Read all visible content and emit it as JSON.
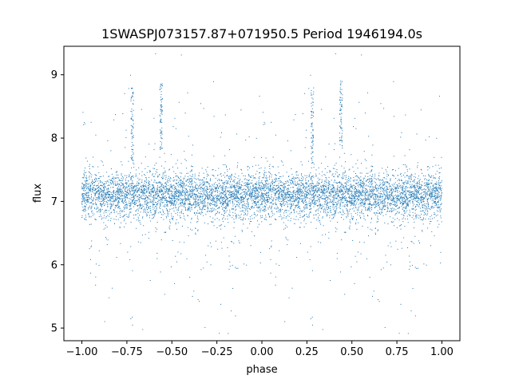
{
  "chart_data": {
    "type": "scatter",
    "title": "1SWASPJ073157.87+071950.5 Period 1946194.0s",
    "xlabel": "phase",
    "ylabel": "flux",
    "xlim": [
      -1.1,
      1.1
    ],
    "ylim": [
      4.8,
      9.45
    ],
    "xticks": [
      -1.0,
      -0.75,
      -0.5,
      -0.25,
      0.0,
      0.25,
      0.5,
      0.75,
      1.0
    ],
    "xtick_labels": [
      "−1.00",
      "−0.75",
      "−0.50",
      "−0.25",
      "0.00",
      "0.25",
      "0.50",
      "0.75",
      "1.00"
    ],
    "yticks": [
      5,
      6,
      7,
      8,
      9
    ],
    "ytick_labels": [
      "5",
      "6",
      "7",
      "8",
      "9"
    ],
    "grid": false,
    "point_color": "#1f77b4",
    "series": [
      {
        "description": "phase-folded light curve (data repeated for phase -1..0 and 0..1)",
        "baseline_flux": 7.1,
        "scatter_sigma": 0.18,
        "bright_excursions": [
          {
            "phase": -0.56,
            "flux_range": [
              7.8,
              8.9
            ]
          },
          {
            "phase": 0.44,
            "flux_range": [
              7.8,
              8.9
            ]
          },
          {
            "phase": -0.72,
            "flux_range": [
              7.6,
              8.8
            ]
          },
          {
            "phase": 0.28,
            "flux_range": [
              7.6,
              8.8
            ]
          }
        ],
        "points": [
          {
            "x": -0.99,
            "y": 7.05
          },
          {
            "x": -0.95,
            "y": 7.2
          },
          {
            "x": -0.9,
            "y": 7.0
          },
          {
            "x": -0.85,
            "y": 7.15
          },
          {
            "x": -0.8,
            "y": 6.9
          },
          {
            "x": -0.75,
            "y": 7.1
          },
          {
            "x": -0.7,
            "y": 7.2
          },
          {
            "x": -0.65,
            "y": 7.0
          },
          {
            "x": -0.6,
            "y": 7.1
          },
          {
            "x": -0.56,
            "y": 8.3
          },
          {
            "x": -0.5,
            "y": 7.05
          },
          {
            "x": -0.45,
            "y": 7.1
          },
          {
            "x": -0.4,
            "y": 7.0
          },
          {
            "x": -0.35,
            "y": 7.2
          },
          {
            "x": -0.3,
            "y": 7.1
          },
          {
            "x": -0.25,
            "y": 7.05
          },
          {
            "x": -0.2,
            "y": 6.9
          },
          {
            "x": -0.15,
            "y": 7.1
          },
          {
            "x": -0.1,
            "y": 7.0
          },
          {
            "x": -0.05,
            "y": 7.15
          },
          {
            "x": 0.0,
            "y": 7.05
          },
          {
            "x": 0.05,
            "y": 7.2
          },
          {
            "x": 0.1,
            "y": 7.0
          },
          {
            "x": 0.15,
            "y": 7.15
          },
          {
            "x": 0.2,
            "y": 6.9
          },
          {
            "x": 0.25,
            "y": 7.1
          },
          {
            "x": 0.3,
            "y": 7.2
          },
          {
            "x": 0.35,
            "y": 7.0
          },
          {
            "x": 0.4,
            "y": 7.1
          },
          {
            "x": 0.44,
            "y": 8.3
          },
          {
            "x": 0.5,
            "y": 7.05
          },
          {
            "x": 0.55,
            "y": 7.1
          },
          {
            "x": 0.6,
            "y": 7.0
          },
          {
            "x": 0.65,
            "y": 7.2
          },
          {
            "x": 0.7,
            "y": 7.1
          },
          {
            "x": 0.75,
            "y": 7.05
          },
          {
            "x": 0.8,
            "y": 6.9
          },
          {
            "x": 0.85,
            "y": 7.1
          },
          {
            "x": 0.9,
            "y": 7.0
          },
          {
            "x": 0.95,
            "y": 7.15
          },
          {
            "x": 0.99,
            "y": 7.05
          }
        ]
      }
    ]
  }
}
